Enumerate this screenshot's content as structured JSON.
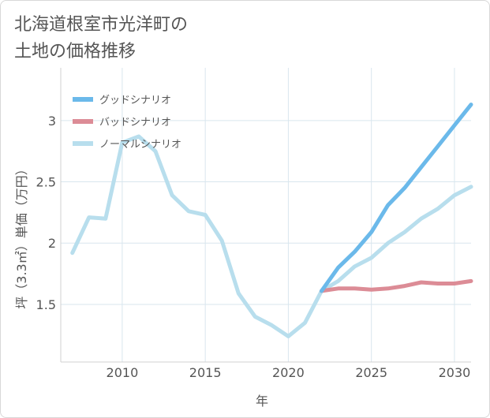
{
  "title_line1": "北海道根室市光洋町の",
  "title_line2": "土地の価格推移",
  "chart_data": {
    "type": "line",
    "title": "北海道根室市光洋町の土地の価格推移",
    "xlabel": "年",
    "ylabel": "坪（3.3㎡）単価（万円）",
    "xlim": [
      2006.3,
      2031
    ],
    "ylim": [
      1.03,
      3.43
    ],
    "xticks": [
      2010,
      2015,
      2020,
      2025,
      2030
    ],
    "yticks": [
      1.5,
      2,
      2.5,
      3
    ],
    "ytick_labels": [
      "1.5",
      "2",
      "2.5",
      "3"
    ],
    "grid": true,
    "legend_position": "top-left",
    "series": [
      {
        "name": "グッドシナリオ",
        "color": "#6bb9ea",
        "x": [
          2022,
          2023,
          2024,
          2025,
          2026,
          2027,
          2028,
          2029,
          2030,
          2031
        ],
        "y": [
          1.61,
          1.8,
          1.93,
          2.09,
          2.31,
          2.45,
          2.62,
          2.79,
          2.96,
          3.13
        ]
      },
      {
        "name": "バッドシナリオ",
        "color": "#dc8c96",
        "x": [
          2022,
          2023,
          2024,
          2025,
          2026,
          2027,
          2028,
          2029,
          2030,
          2031
        ],
        "y": [
          1.61,
          1.63,
          1.63,
          1.62,
          1.63,
          1.65,
          1.68,
          1.67,
          1.67,
          1.69
        ]
      },
      {
        "name": "ノーマルシナリオ",
        "color": "#b8deed",
        "x": [
          2007,
          2008,
          2009,
          2010,
          2011,
          2012,
          2013,
          2014,
          2015,
          2016,
          2017,
          2018,
          2019,
          2020,
          2021,
          2022,
          2023,
          2024,
          2025,
          2026,
          2027,
          2028,
          2029,
          2030,
          2031
        ],
        "y": [
          1.92,
          2.21,
          2.2,
          2.82,
          2.87,
          2.75,
          2.39,
          2.26,
          2.23,
          2.02,
          1.59,
          1.4,
          1.33,
          1.24,
          1.35,
          1.61,
          1.69,
          1.81,
          1.88,
          2.0,
          2.09,
          2.2,
          2.28,
          2.39,
          2.46
        ]
      }
    ]
  }
}
